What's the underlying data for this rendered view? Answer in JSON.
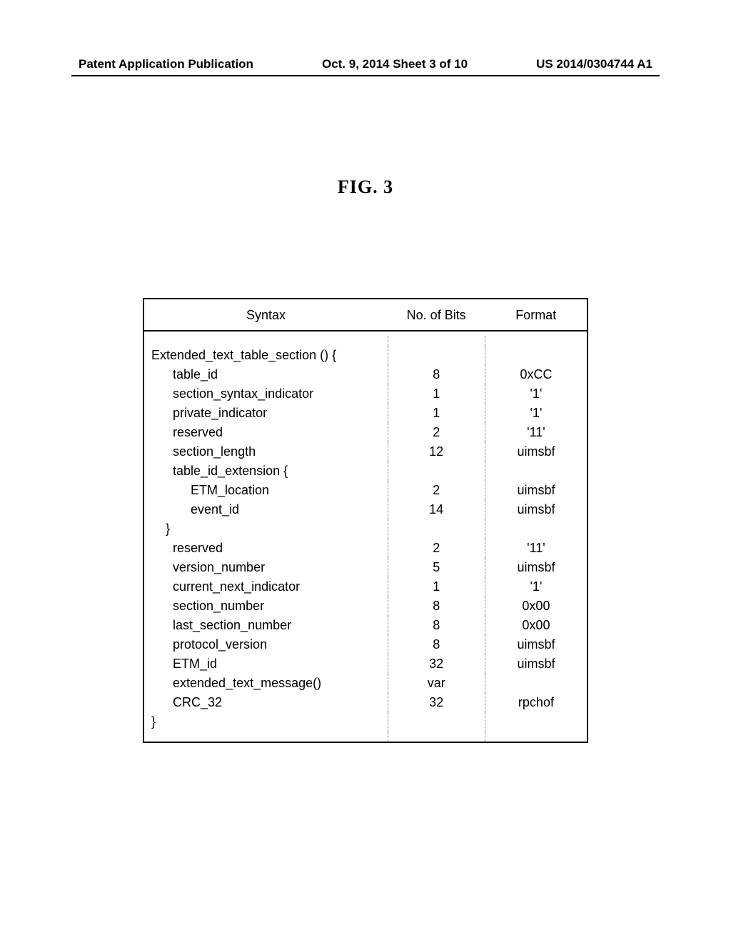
{
  "header": {
    "left": "Patent Application Publication",
    "center": "Oct. 9, 2014  Sheet 3 of 10",
    "right": "US 2014/0304744 A1"
  },
  "figure_title": "FIG. 3",
  "table": {
    "columns": {
      "syntax": "Syntax",
      "bits": "No. of Bits",
      "format": "Format"
    },
    "rows": [
      {
        "syntax": "Extended_text_table_section () {",
        "bits": "",
        "format": ""
      },
      {
        "syntax": "      table_id",
        "bits": "8",
        "format": "0xCC"
      },
      {
        "syntax": "      section_syntax_indicator",
        "bits": "1",
        "format": "'1'"
      },
      {
        "syntax": "      private_indicator",
        "bits": "1",
        "format": "'1'"
      },
      {
        "syntax": "      reserved",
        "bits": "2",
        "format": "'11'"
      },
      {
        "syntax": "      section_length",
        "bits": "12",
        "format": "uimsbf"
      },
      {
        "syntax": "      table_id_extension {",
        "bits": "",
        "format": ""
      },
      {
        "syntax": "           ETM_location",
        "bits": "2",
        "format": "uimsbf"
      },
      {
        "syntax": "           event_id",
        "bits": "14",
        "format": "uimsbf"
      },
      {
        "syntax": "    }",
        "bits": "",
        "format": ""
      },
      {
        "syntax": "      reserved",
        "bits": "2",
        "format": "'11'"
      },
      {
        "syntax": "      version_number",
        "bits": "5",
        "format": "uimsbf"
      },
      {
        "syntax": "      current_next_indicator",
        "bits": "1",
        "format": "'1'"
      },
      {
        "syntax": "      section_number",
        "bits": "8",
        "format": "0x00"
      },
      {
        "syntax": "      last_section_number",
        "bits": "8",
        "format": "0x00"
      },
      {
        "syntax": "      protocol_version",
        "bits": "8",
        "format": "uimsbf"
      },
      {
        "syntax": "      ETM_id",
        "bits": "32",
        "format": "uimsbf"
      },
      {
        "syntax": "      extended_text_message()",
        "bits": "var",
        "format": ""
      },
      {
        "syntax": "      CRC_32",
        "bits": "32",
        "format": "rpchof"
      },
      {
        "syntax": "}",
        "bits": "",
        "format": ""
      }
    ]
  }
}
